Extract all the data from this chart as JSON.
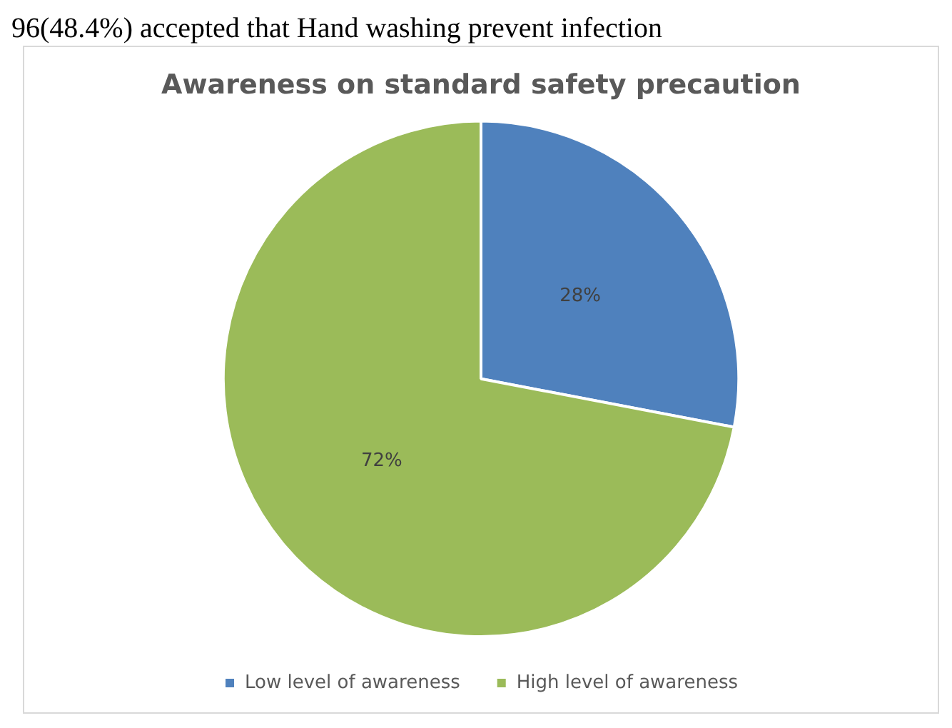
{
  "chart_data": {
    "type": "pie",
    "title": "Awareness on standard safety precaution",
    "annotations": [
      "96(48.4%) accepted that Hand washing prevent infection"
    ],
    "categories": [
      "Low level of awareness",
      "High level of awareness"
    ],
    "values": [
      28,
      72
    ],
    "colors": [
      "#4f81bd",
      "#9bbb59"
    ],
    "value_labels": [
      "28%",
      "72%"
    ],
    "legend": "bottom"
  }
}
